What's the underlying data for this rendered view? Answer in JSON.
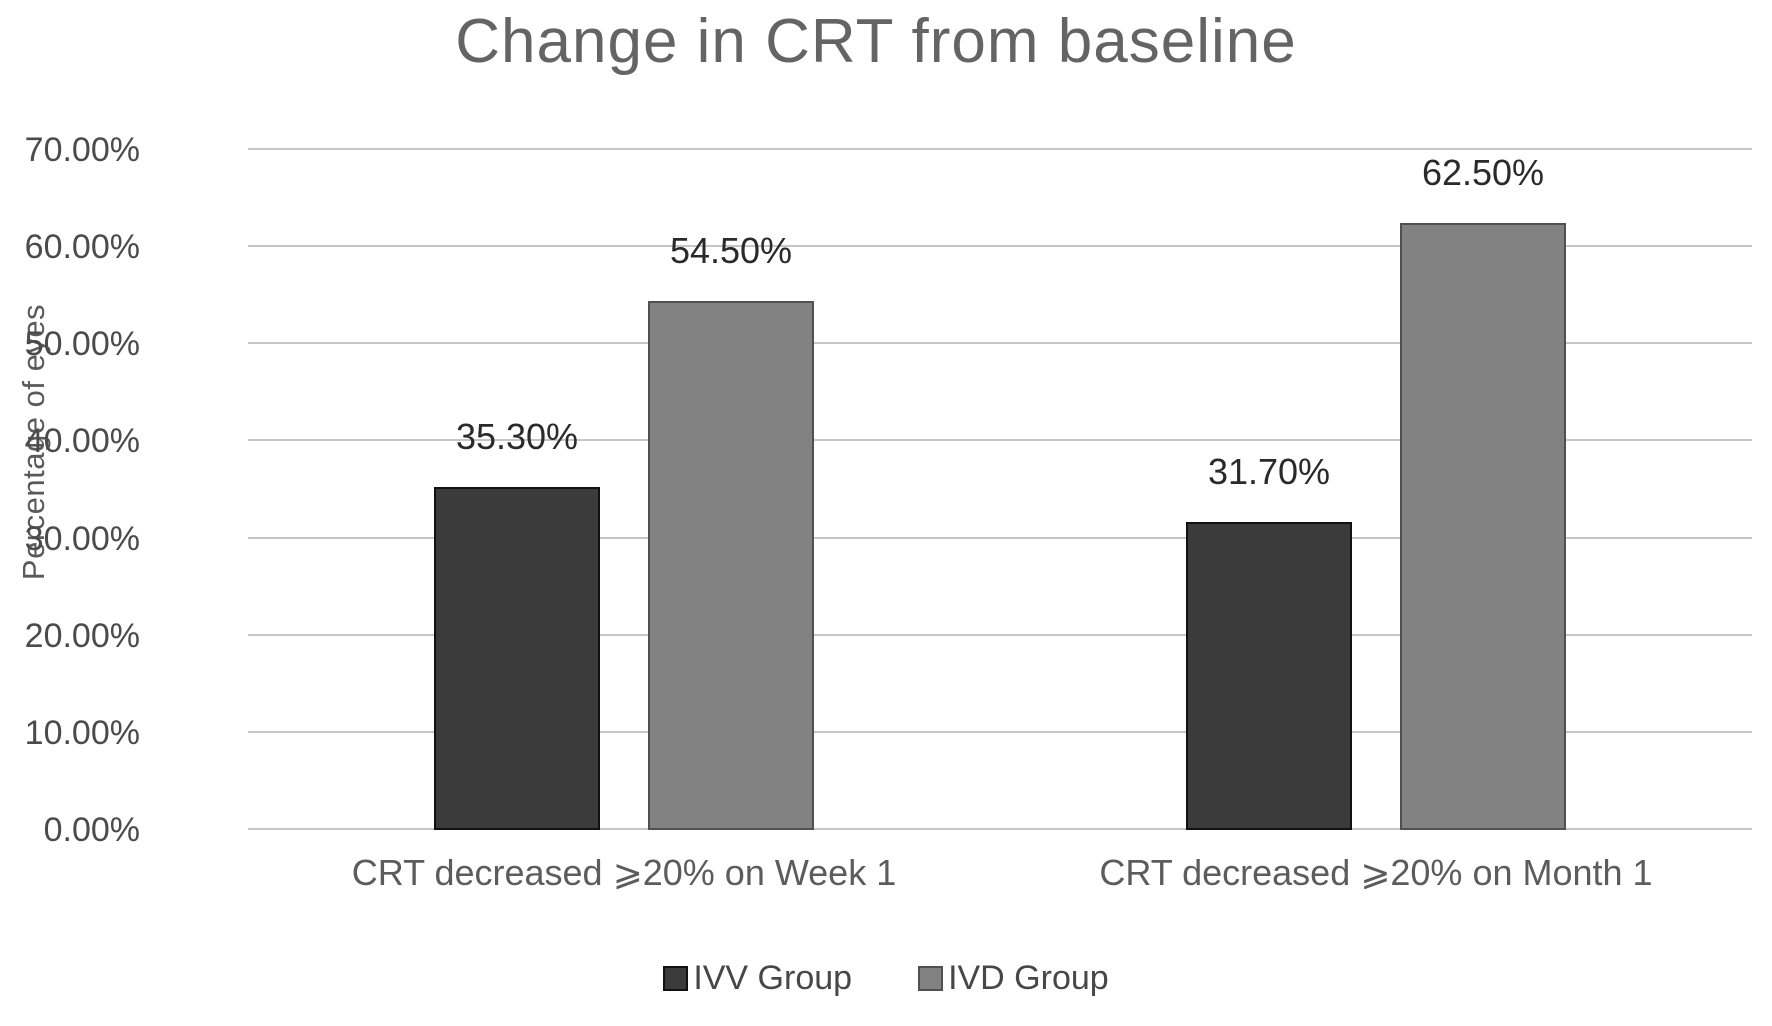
{
  "chart_data": {
    "type": "bar",
    "title": "Change in CRT from baseline",
    "ylabel": "Percentage of eyes",
    "xlabel": "",
    "categories": [
      "CRT decreased ⩾20% on Week 1",
      "CRT decreased ⩾20% on Month 1"
    ],
    "series": [
      {
        "name": "IVV Group",
        "values": [
          35.3,
          31.7
        ],
        "data_labels": [
          "35.30%",
          "31.70%"
        ],
        "color": "#3b3b3b",
        "border_color": "#111111"
      },
      {
        "name": "IVD Group",
        "values": [
          54.5,
          62.5
        ],
        "data_labels": [
          "54.50%",
          "62.50%"
        ],
        "color": "#828282",
        "border_color": "#505050"
      }
    ],
    "ylim": [
      0,
      70
    ],
    "yticks": [
      {
        "value": 70,
        "label": "70.00%"
      },
      {
        "value": 60,
        "label": "60.00%"
      },
      {
        "value": 50,
        "label": "50.00%"
      },
      {
        "value": 40,
        "label": "40.00%"
      },
      {
        "value": 30,
        "label": "30.00%"
      },
      {
        "value": 20,
        "label": "20.00%"
      },
      {
        "value": 10,
        "label": "10.00%"
      },
      {
        "value": 0,
        "label": "0.00%"
      }
    ],
    "grid": true,
    "gridline_color": "#c6c6c6",
    "legend_position": "bottom"
  }
}
